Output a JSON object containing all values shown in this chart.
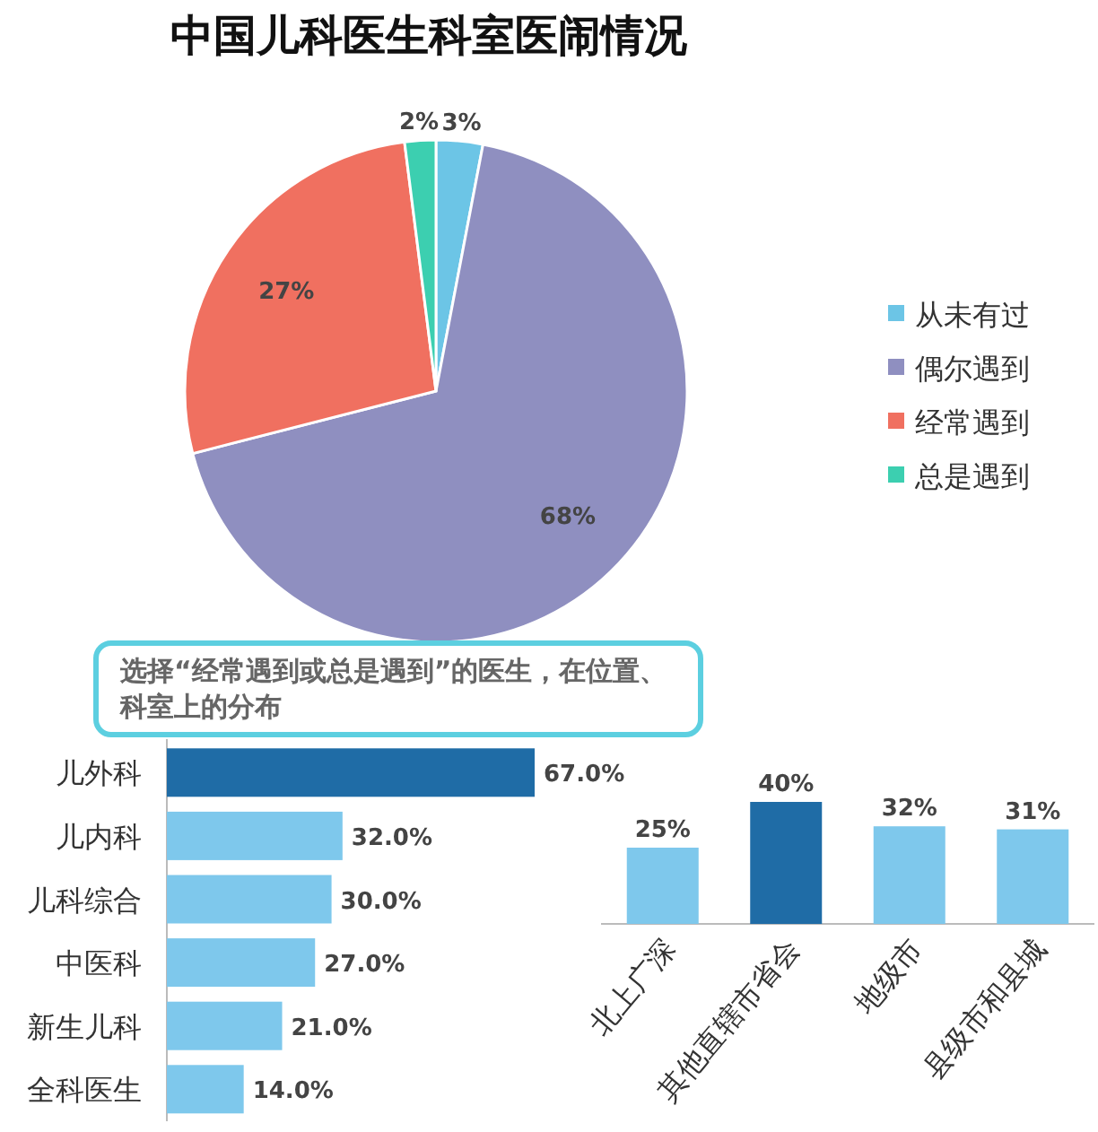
{
  "chart_data": [
    {
      "type": "pie",
      "title": "中国儿科医生科室医闹情况",
      "categories": [
        "从未有过",
        "偶尔遇到",
        "经常遇到",
        "总是遇到"
      ],
      "values": [
        3,
        68,
        27,
        2
      ],
      "colors": [
        "#6cc5e6",
        "#8f8fc0",
        "#f07060",
        "#3ccfb0"
      ],
      "value_labels": [
        "3%",
        "68%",
        "27%",
        "2%"
      ],
      "legend": "right"
    },
    {
      "type": "bar",
      "orientation": "horizontal",
      "subtitle": "选择“经常遇到或总是遇到”的医生，在位置、科室上的分布",
      "categories": [
        "儿外科",
        "儿内科",
        "儿科综合",
        "中医科",
        "新生儿科",
        "全科医生"
      ],
      "values": [
        67.0,
        32.0,
        30.0,
        27.0,
        21.0,
        14.0
      ],
      "value_labels": [
        "67.0%",
        "32.0%",
        "30.0%",
        "27.0%",
        "21.0%",
        "14.0%"
      ],
      "colors": [
        "#1f6ca6",
        "#7ec8ec",
        "#7ec8ec",
        "#7ec8ec",
        "#7ec8ec",
        "#7ec8ec"
      ]
    },
    {
      "type": "bar",
      "categories": [
        "北上广深",
        "其他直辖市省会",
        "地级市",
        "县级市和县城"
      ],
      "values": [
        25,
        40,
        32,
        31
      ],
      "value_labels": [
        "25%",
        "40%",
        "32%",
        "31%"
      ],
      "colors": [
        "#7ec8ec",
        "#1f6ca6",
        "#7ec8ec",
        "#7ec8ec"
      ]
    }
  ]
}
